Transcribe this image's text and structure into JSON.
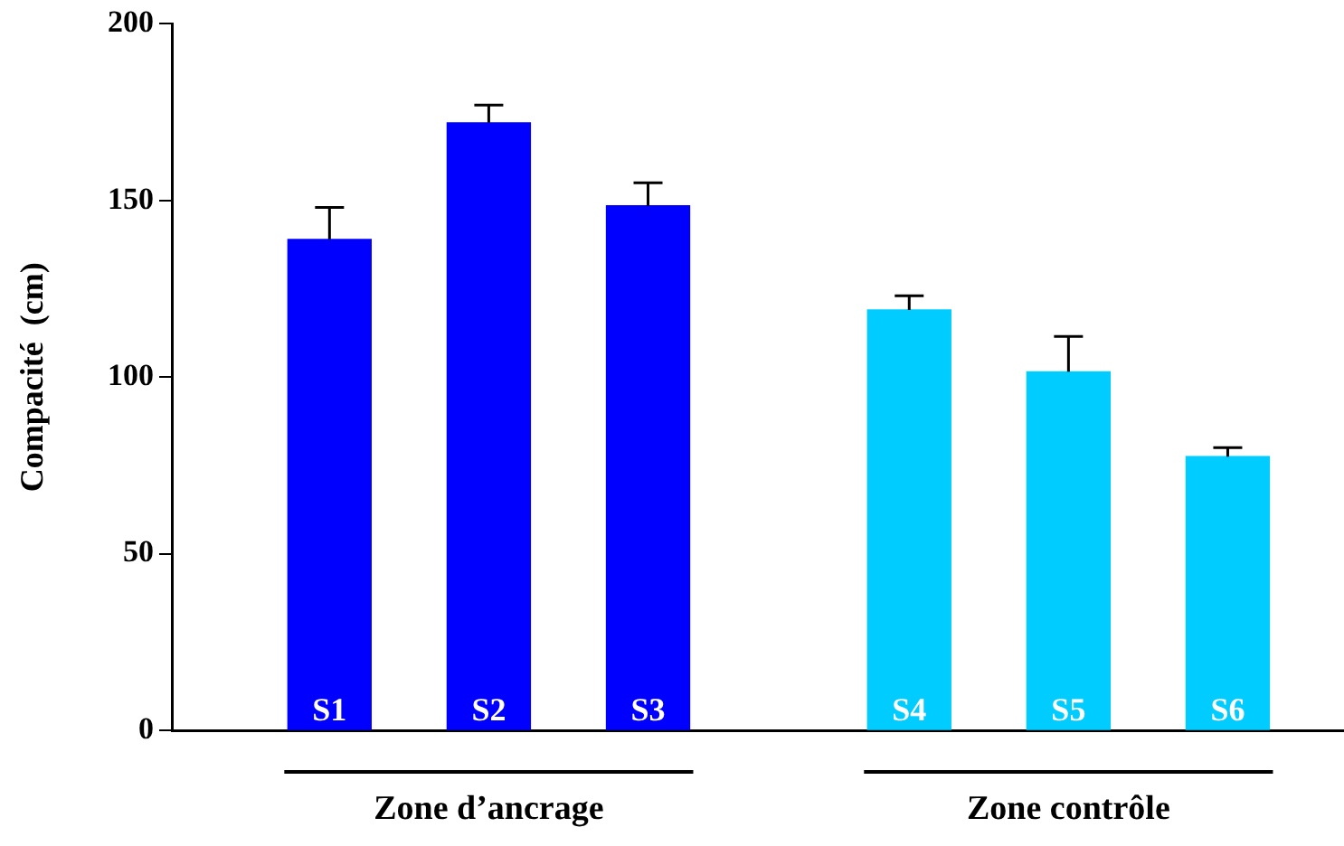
{
  "chart_data": {
    "type": "bar",
    "ylabel": "Compacité  (cm)",
    "categories": [
      "S1",
      "S2",
      "S3",
      "S4",
      "S5",
      "S6"
    ],
    "values": [
      139,
      172,
      148.5,
      119,
      101.5,
      77.5
    ],
    "colors": [
      "#0000ff",
      "#0000ff",
      "#0000ff",
      "#00ccff",
      "#00ccff",
      "#00ccff"
    ],
    "errors": [
      [
        139,
        148
      ],
      [
        172,
        177
      ],
      [
        148.5,
        155
      ],
      [
        119,
        123
      ],
      [
        101.5,
        111.5
      ],
      [
        77.5,
        80
      ]
    ],
    "ylim": [
      0,
      200
    ],
    "yticks": [
      0,
      50,
      100,
      150,
      200
    ],
    "annotations": [
      "Zone d’ancrage",
      "Zone contrôle"
    ]
  }
}
